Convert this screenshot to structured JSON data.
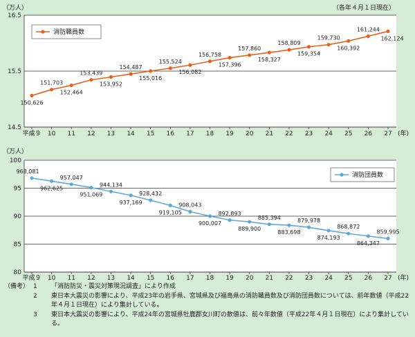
{
  "chart_data": [
    {
      "type": "line",
      "title": "",
      "unit_label": "（万人）",
      "note_top_right": "（各年４月１日現在）",
      "x_unit": "(年)",
      "categories": [
        "平成９",
        "10",
        "11",
        "12",
        "13",
        "14",
        "15",
        "16",
        "17",
        "18",
        "19",
        "20",
        "21",
        "22",
        "23",
        "24",
        "25",
        "26",
        "27"
      ],
      "series": [
        {
          "name": "消防職員数",
          "values": [
            150626,
            151703,
            152464,
            153439,
            153952,
            154487,
            155016,
            155524,
            156082,
            156758,
            157396,
            157860,
            158327,
            158809,
            159354,
            159730,
            160392,
            161244,
            162124
          ],
          "labels": [
            "150,626",
            "151,703",
            "152,464",
            "153,439",
            "153,952",
            "154,487",
            "155,016",
            "155,524",
            "156,082",
            "156,758",
            "157,396",
            "157,860",
            "158,327",
            "158,809",
            "159,354",
            "159,730",
            "160,392",
            "161,244",
            "162,124"
          ]
        }
      ],
      "ylim": [
        14.5,
        16.5
      ],
      "yticks": [
        "16.5",
        "15.5",
        "14.5"
      ],
      "ytick_values": [
        16.5,
        15.5,
        14.5
      ],
      "color": "#e8601c"
    },
    {
      "type": "line",
      "title": "",
      "unit_label": "（万人）",
      "x_unit": "(年)",
      "categories": [
        "平成９",
        "10",
        "11",
        "12",
        "13",
        "14",
        "15",
        "16",
        "17",
        "18",
        "19",
        "20",
        "21",
        "22",
        "23",
        "24",
        "25",
        "26",
        "27"
      ],
      "series": [
        {
          "name": "消防団員数",
          "values": [
            968081,
            962625,
            957047,
            951069,
            944134,
            937169,
            928432,
            919105,
            908043,
            900007,
            892893,
            889900,
            885394,
            883698,
            879978,
            874193,
            868872,
            864347,
            859995
          ],
          "labels": [
            "968,081",
            "962,625",
            "957,047",
            "951,069",
            "944,134",
            "937,169",
            "928,432",
            "919,105",
            "908,043",
            "900,007",
            "892,893",
            "889,900",
            "885,394",
            "883,698",
            "879,978",
            "874,193",
            "868,872",
            "864,347",
            "859,995"
          ]
        }
      ],
      "ylim": [
        80,
        100
      ],
      "yticks": [
        "100",
        "95",
        "90",
        "85",
        "80"
      ],
      "ytick_values": [
        100,
        95,
        90,
        85,
        80
      ],
      "color": "#5aa8dc"
    }
  ],
  "notes": {
    "head": "（備考）",
    "items": [
      {
        "num": "1",
        "text": "「消防防災・震災対策現況調査」により作成"
      },
      {
        "num": "2",
        "text": "東日本大震災の影響により、平成23年の岩手県、宮城県及び福島県の消防職員数及び消防団員数については、前年数値（平成22年４月１日現在）により集計している。"
      },
      {
        "num": "3",
        "text": "東日本大震災の影響により、平成24年の宮城県牡鹿郡女川町の数値は、前々年数値（平成22年４月１日現在）により集計している。"
      }
    ]
  }
}
